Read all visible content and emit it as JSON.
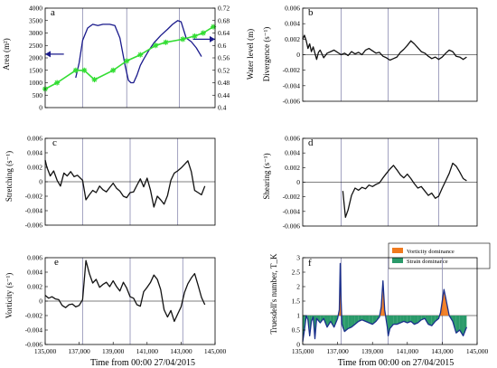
{
  "colors": {
    "area": "#1a1a8c",
    "water": "#33dd33",
    "black": "#111111",
    "truesdell": "#1a2f8c",
    "vorticity_dom": "#f07a1e",
    "strain_dom": "#2a9a6a",
    "divider": "#8b8bb0"
  },
  "xlabel_left": "Time from 00:00 27/04/2015",
  "xlabel_right": "Time from 00:00 on 27/04/2015",
  "chart_data": [
    {
      "id": "a",
      "type": "line",
      "panel_label": "a",
      "title": "",
      "xlim": [
        135000,
        145000
      ],
      "xticks": [],
      "ylabel": "Area (m²)",
      "ylim": [
        0,
        4000
      ],
      "yticks": [
        "0",
        "500",
        "1000",
        "1500",
        "2000",
        "2500",
        "3000",
        "3500",
        "4000"
      ],
      "ylabel_right": "Water level (m)",
      "ylim_right": [
        0.4,
        0.72
      ],
      "yticks_right": [
        "0.4",
        "0.44",
        "0.48",
        "0.52",
        "0.56",
        "0.6",
        "0.64",
        "0.68",
        "0.72"
      ],
      "dividers": [
        137200,
        139800,
        142900
      ],
      "series": [
        {
          "name": "",
          "color_key": "area",
          "axis": "left",
          "x": [
            136800,
            137000,
            137200,
            137500,
            137800,
            138100,
            138400,
            138800,
            139100,
            139400,
            139700,
            139900,
            140050,
            140200,
            140400,
            140600,
            140800,
            141100,
            141400,
            141800,
            142200,
            142500,
            142800,
            143000,
            143300,
            143600,
            143900,
            144200
          ],
          "y": [
            1200,
            1800,
            2700,
            3200,
            3350,
            3300,
            3350,
            3350,
            3300,
            2800,
            1700,
            1100,
            1000,
            1000,
            1300,
            1700,
            1950,
            2300,
            2600,
            2900,
            3150,
            3350,
            3500,
            3450,
            2800,
            2650,
            2400,
            2050
          ]
        },
        {
          "name": "",
          "color_key": "water",
          "axis": "right",
          "markers": true,
          "x": [
            135000,
            135700,
            136800,
            137300,
            137900,
            139000,
            139800,
            140600,
            141500,
            142100,
            143100,
            143800,
            144300,
            144900
          ],
          "y": [
            0.46,
            0.48,
            0.52,
            0.52,
            0.49,
            0.52,
            0.55,
            0.57,
            0.6,
            0.61,
            0.62,
            0.63,
            0.64,
            0.66
          ]
        }
      ],
      "annotations": [
        {
          "type": "arrow",
          "x": 136100,
          "y": 2150,
          "to_x": 135000,
          "to_y": 2150
        },
        {
          "type": "arrow",
          "x": 143700,
          "y": 2750,
          "to_x": 145000,
          "to_y": 2750
        }
      ]
    },
    {
      "id": "b",
      "type": "line",
      "panel_label": "b",
      "title": "",
      "xlim": [
        135000,
        145000
      ],
      "xticks": [],
      "ylabel": "Divergence (s⁻¹)",
      "ylim": [
        -0.006,
        0.006
      ],
      "yticks": [
        "-0.006",
        "-0.004",
        "-0.002",
        "0",
        "0.002",
        "0.004",
        "0.006"
      ],
      "dividers": [
        137200,
        139900,
        142800
      ],
      "series": [
        {
          "name": "",
          "color_key": "black",
          "x": [
            135000,
            135100,
            135200,
            135300,
            135400,
            135500,
            135600,
            135700,
            135800,
            135900,
            136000,
            136200,
            136400,
            136600,
            136800,
            137200,
            137400,
            137600,
            137800,
            138000,
            138200,
            138400,
            138600,
            138800,
            139000,
            139200,
            139400,
            139600,
            139800,
            140000,
            140200,
            140400,
            140600,
            140800,
            141000,
            141200,
            141400,
            141600,
            141800,
            142000,
            142200,
            142400,
            142600,
            142800,
            143000,
            143200,
            143400,
            143600,
            143800,
            144000,
            144200,
            144400
          ],
          "y": [
            0.002,
            0.0025,
            0.0018,
            0.0008,
            0.0014,
            0.0004,
            0.001,
            0.0002,
            -0.0006,
            0.0003,
            0.0006,
            -0.0004,
            0.0002,
            0.0004,
            0.0006,
            0.0,
            0.0002,
            -0.0001,
            0.0004,
            0.0001,
            0.0003,
            0.0,
            0.0006,
            0.0008,
            0.0005,
            0.0002,
            0.0003,
            -0.0002,
            -0.0004,
            -0.0007,
            -0.0005,
            -0.0003,
            0.0003,
            0.0007,
            0.0012,
            0.0018,
            0.0014,
            0.0009,
            0.0004,
            0.0002,
            -0.0002,
            -0.0005,
            -0.0003,
            -0.0006,
            -0.0003,
            0.0002,
            0.0006,
            0.0004,
            -0.0002,
            -0.0003,
            -0.0006,
            -0.0003
          ]
        }
      ]
    },
    {
      "id": "c",
      "type": "line",
      "panel_label": "c",
      "title": "",
      "xlim": [
        135000,
        145000
      ],
      "xticks": [],
      "ylabel": "Stretching (s⁻¹)",
      "ylim": [
        -0.006,
        0.006
      ],
      "yticks": [
        "-0.006",
        "-0.004",
        "-0.002",
        "0",
        "0.002",
        "0.004",
        "0.006"
      ],
      "dividers": [
        137200,
        140000,
        142800
      ],
      "series": [
        {
          "name": "",
          "color_key": "black",
          "x": [
            135000,
            135100,
            135300,
            135500,
            135700,
            135900,
            136100,
            136300,
            136500,
            136700,
            136900,
            137200,
            137400,
            137600,
            137800,
            138000,
            138200,
            138400,
            138600,
            138800,
            139000,
            139200,
            139400,
            139600,
            139800,
            140000,
            140200,
            140400,
            140600,
            140800,
            141000,
            141200,
            141400,
            141600,
            141800,
            142000,
            142200,
            142400,
            142600,
            142800,
            143000,
            143200,
            143400,
            143600,
            143800,
            144000,
            144200,
            144400
          ],
          "y": [
            0.003,
            0.002,
            0.0008,
            0.0015,
            0.0002,
            -0.0006,
            0.0012,
            0.0008,
            0.0014,
            0.0007,
            0.0009,
            0.0002,
            -0.0025,
            -0.0018,
            -0.0012,
            -0.0015,
            -0.0006,
            -0.0011,
            -0.0014,
            -0.0008,
            -0.0002,
            -0.0009,
            -0.0013,
            -0.002,
            -0.0022,
            -0.0015,
            -0.0014,
            -0.0005,
            0.0004,
            -0.0007,
            0.0005,
            -0.0012,
            -0.0035,
            -0.002,
            -0.0025,
            -0.0031,
            -0.0019,
            0.0002,
            0.0012,
            0.0015,
            0.0019,
            0.0024,
            0.0029,
            0.0014,
            -0.0012,
            -0.0015,
            -0.0018,
            -0.0006
          ]
        }
      ]
    },
    {
      "id": "d",
      "type": "line",
      "panel_label": "d",
      "title": "",
      "xlim": [
        135000,
        145000
      ],
      "xticks": [],
      "ylabel": "Shearing (s⁻¹)",
      "ylim": [
        -0.006,
        0.006
      ],
      "yticks": [
        "-0.006",
        "-0.004",
        "-0.002",
        "0",
        "0.002",
        "0.004",
        "0.006"
      ],
      "dividers": [
        137200,
        139900,
        142800
      ],
      "series": [
        {
          "name": "",
          "color_key": "black",
          "x": [
            137300,
            137450,
            137600,
            137800,
            138000,
            138200,
            138400,
            138600,
            138800,
            139000,
            139200,
            139400,
            139600,
            139800,
            140000,
            140200,
            140400,
            140600,
            140800,
            141000,
            141200,
            141400,
            141600,
            141800,
            142000,
            142200,
            142400,
            142600,
            142800,
            143000,
            143200,
            143400,
            143600,
            143800,
            144000,
            144200,
            144400
          ],
          "y": [
            -0.0012,
            -0.0048,
            -0.0038,
            -0.0018,
            -0.0008,
            -0.0011,
            -0.0007,
            -0.0009,
            -0.0004,
            -0.0006,
            -0.0003,
            -0.0001,
            0.0006,
            0.0012,
            0.0018,
            0.0023,
            0.0017,
            0.001,
            0.0006,
            0.0011,
            0.0005,
            -0.0002,
            -0.0008,
            -0.0006,
            -0.0012,
            -0.0018,
            -0.0015,
            -0.0022,
            -0.0019,
            -0.0008,
            0.0002,
            0.0012,
            0.0026,
            0.0022,
            0.0014,
            0.0005,
            0.0002
          ]
        }
      ]
    },
    {
      "id": "e",
      "type": "line",
      "panel_label": "e",
      "title": "",
      "xlim": [
        135000,
        145000
      ],
      "xticks": [
        "135,000",
        "137,000",
        "139,000",
        "141,000",
        "143,000",
        "145,000"
      ],
      "xlabel": "Time from 00:00 27/04/2015",
      "ylabel": "Vorticity (s⁻¹)",
      "ylim": [
        -0.006,
        0.006
      ],
      "yticks": [
        "-0.006",
        "-0.004",
        "-0.002",
        "0",
        "0.002",
        "0.004",
        "0.006"
      ],
      "dividers": [
        137200,
        140000,
        143100
      ],
      "series": [
        {
          "name": "",
          "color_key": "black",
          "x": [
            135000,
            135200,
            135400,
            135600,
            135800,
            136000,
            136200,
            136400,
            136600,
            136800,
            137000,
            137200,
            137400,
            137600,
            137800,
            138000,
            138200,
            138400,
            138600,
            138800,
            139000,
            139200,
            139400,
            139600,
            139800,
            140000,
            140200,
            140400,
            140600,
            140800,
            141000,
            141200,
            141400,
            141600,
            141800,
            142000,
            142200,
            142400,
            142600,
            142800,
            143000,
            143200,
            143400,
            143600,
            143800,
            144000,
            144200,
            144400
          ],
          "y": [
            0.0008,
            0.0004,
            0.0006,
            0.0003,
            0.0002,
            -0.0006,
            -0.0009,
            -0.0005,
            -0.0004,
            -0.0008,
            -0.0006,
            0.0002,
            0.0056,
            0.0038,
            0.0025,
            0.003,
            0.0019,
            0.0023,
            0.0026,
            0.002,
            0.0028,
            0.002,
            0.0014,
            0.0026,
            0.0018,
            0.0006,
            0.0004,
            -0.0005,
            -0.0007,
            0.0013,
            0.0019,
            0.0026,
            0.0036,
            0.003,
            0.0016,
            -0.0012,
            -0.0022,
            -0.0013,
            -0.0028,
            -0.0018,
            -0.0008,
            0.0012,
            0.0024,
            0.0032,
            0.0038,
            0.0022,
            0.0005,
            -0.0005
          ]
        }
      ]
    },
    {
      "id": "f",
      "type": "area",
      "panel_label": "f",
      "title": "",
      "xlim": [
        135000,
        145000
      ],
      "xticks": [
        "135,000",
        "137,000",
        "139,000",
        "141,000",
        "143,000",
        "145,000"
      ],
      "xlabel": "Time from 00:00 on 27/04/2015",
      "ylabel": "Truesdell's number, T_K",
      "ylim": [
        0,
        3
      ],
      "yticks": [
        "0",
        "0.5",
        "1",
        "1.5",
        "2",
        "2.5",
        "3"
      ],
      "reference_line": 1,
      "dividers": [
        137200,
        139900,
        143000
      ],
      "legend_position": "top-right",
      "legend": [
        {
          "label": "Vorticity dominance",
          "color_key": "vorticity_dom"
        },
        {
          "label": "Strain dominance",
          "color_key": "strain_dom"
        }
      ],
      "series": [
        {
          "name": "",
          "color_key": "truesdell",
          "x": [
            135000,
            135100,
            135200,
            135300,
            135400,
            135500,
            135600,
            135700,
            135800,
            136000,
            136200,
            136400,
            136600,
            136800,
            137000,
            137100,
            137150,
            137200,
            137250,
            137300,
            137400,
            137600,
            137800,
            138000,
            138200,
            138400,
            138600,
            138800,
            139000,
            139200,
            139400,
            139500,
            139600,
            139700,
            139800,
            139850,
            139900,
            140000,
            140200,
            140400,
            140600,
            140800,
            141000,
            141200,
            141400,
            141600,
            141800,
            142000,
            142200,
            142400,
            142600,
            142800,
            142900,
            143000,
            143100,
            143200,
            143300,
            143400,
            143600,
            143800,
            144000,
            144200,
            144400
          ],
          "y": [
            0.1,
            0.5,
            1.0,
            0.85,
            0.3,
            0.8,
            0.95,
            0.2,
            0.9,
            0.75,
            0.9,
            0.6,
            0.8,
            0.6,
            0.9,
            1.2,
            2.8,
            1.5,
            0.7,
            0.6,
            0.45,
            0.55,
            0.6,
            0.7,
            0.8,
            0.85,
            0.8,
            0.75,
            0.7,
            0.8,
            0.95,
            1.3,
            2.2,
            1.2,
            0.8,
            0.6,
            0.3,
            0.55,
            0.7,
            0.7,
            0.75,
            0.8,
            0.75,
            0.8,
            0.7,
            0.75,
            0.85,
            0.9,
            0.7,
            0.65,
            0.8,
            0.9,
            1.1,
            1.5,
            1.9,
            1.6,
            1.3,
            1.0,
            0.8,
            0.4,
            0.5,
            0.3,
            0.6
          ]
        }
      ]
    }
  ]
}
